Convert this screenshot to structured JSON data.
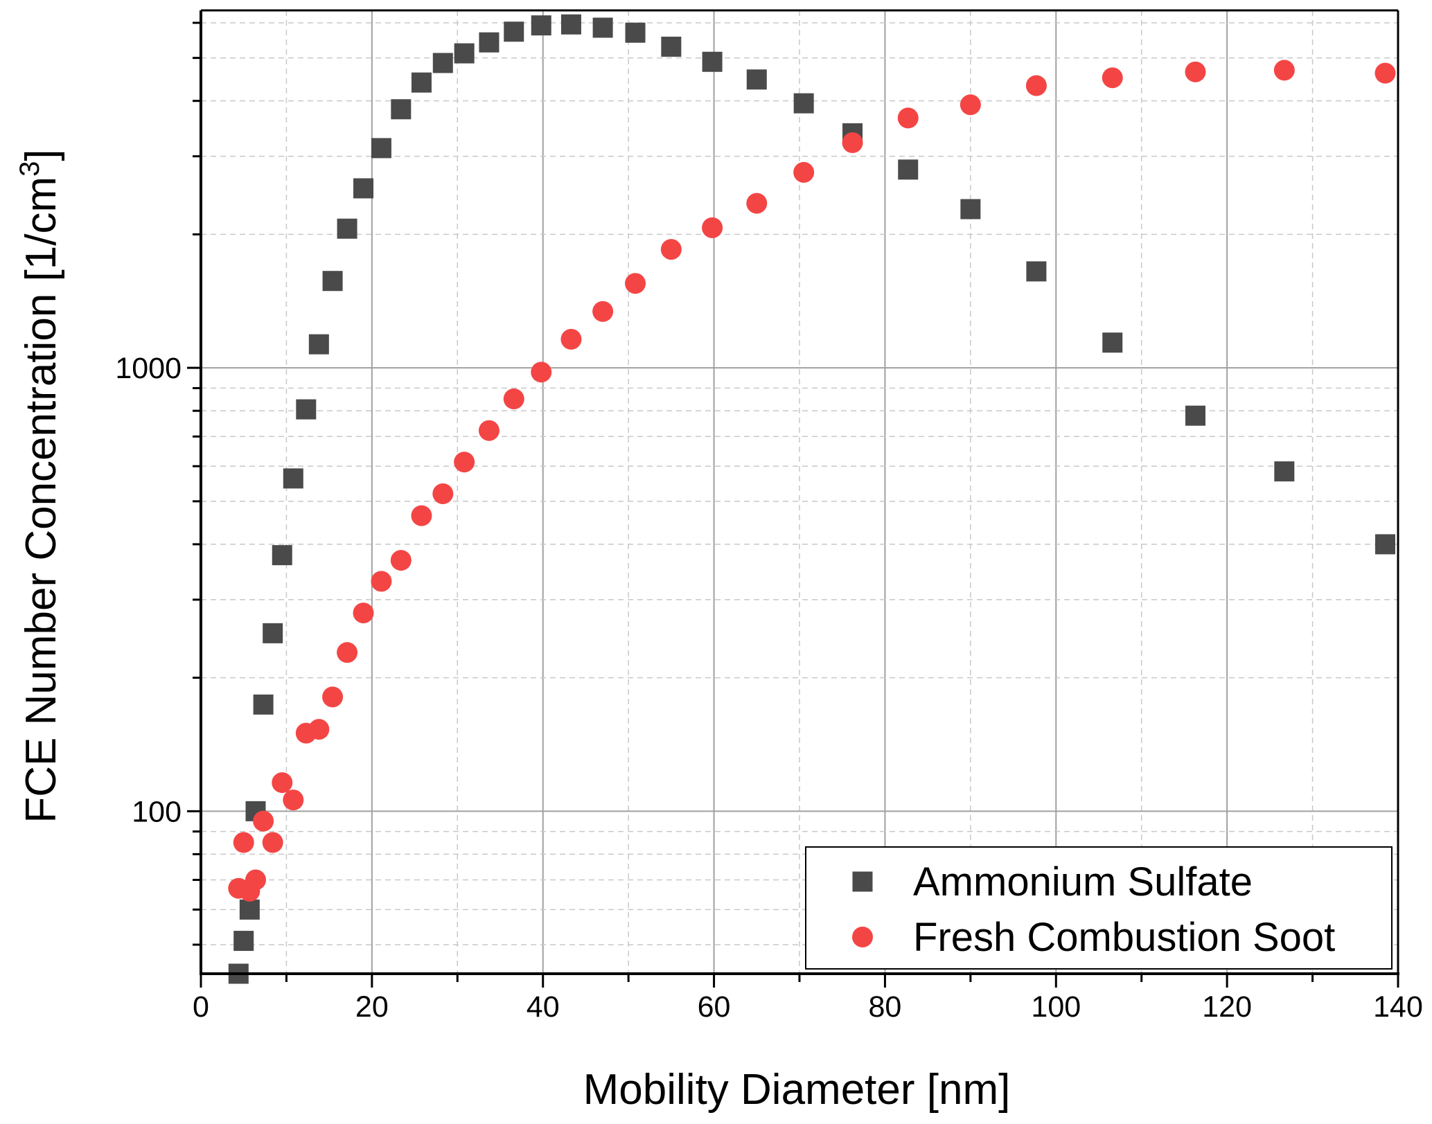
{
  "chart_data": {
    "type": "scatter",
    "xlabel": "Mobility Diameter [nm]",
    "ylabel": "FCE Number Concentration [1/cm³]",
    "ylabel_main": "FCE Number Concentration [1/cm",
    "ylabel_sup": "3",
    "ylabel_close": "]",
    "x_scale": "linear",
    "y_scale": "log",
    "xlim": [
      0,
      140
    ],
    "ylim": [
      43,
      6400
    ],
    "x_ticks": [
      0,
      20,
      40,
      60,
      80,
      100,
      120,
      140
    ],
    "x_tick_labels": [
      "0",
      "20",
      "40",
      "60",
      "80",
      "100",
      "120",
      "140"
    ],
    "y_tick_labels": [
      {
        "value": 100,
        "label": "100"
      },
      {
        "value": 1000,
        "label": "1000"
      }
    ],
    "grid": true,
    "legend_position": "bottom-right",
    "series": [
      {
        "name": "Ammonium Sulfate",
        "marker": "square",
        "color": "#4a4a4a",
        "x": [
          4.4,
          5.0,
          5.7,
          6.4,
          7.3,
          8.4,
          9.5,
          10.8,
          12.3,
          13.8,
          15.4,
          17.1,
          19.0,
          21.1,
          23.4,
          25.8,
          28.3,
          30.8,
          33.7,
          36.6,
          39.8,
          43.3,
          47.0,
          50.8,
          55.0,
          59.8,
          65.0,
          70.5,
          76.2,
          82.7,
          90.0,
          97.7,
          106.6,
          116.3,
          126.7,
          138.5
        ],
        "y": [
          43,
          51,
          60,
          100,
          174,
          252,
          378,
          563,
          806,
          1130,
          1570,
          2060,
          2540,
          3130,
          3830,
          4400,
          4870,
          5120,
          5420,
          5730,
          5920,
          5950,
          5850,
          5700,
          5300,
          4900,
          4470,
          3950,
          3380,
          2800,
          2280,
          1650,
          1140,
          780,
          584,
          400
        ]
      },
      {
        "name": "Fresh Combustion Soot",
        "marker": "circle",
        "color": "#f44545",
        "x": [
          4.4,
          5.0,
          5.7,
          6.4,
          7.3,
          8.4,
          9.5,
          10.8,
          12.3,
          13.8,
          15.4,
          17.1,
          19.0,
          21.1,
          23.4,
          25.8,
          28.3,
          30.8,
          33.7,
          36.6,
          39.8,
          43.3,
          47.0,
          50.8,
          55.0,
          59.8,
          65.0,
          70.5,
          76.2,
          82.7,
          90.0,
          97.7,
          106.6,
          116.3,
          126.7,
          138.5
        ],
        "y": [
          67,
          85,
          66,
          70,
          95,
          85,
          116,
          106,
          150,
          153,
          181,
          228,
          280,
          330,
          368,
          464,
          520,
          613,
          722,
          851,
          978,
          1160,
          1340,
          1550,
          1850,
          2070,
          2350,
          2760,
          3220,
          3660,
          3920,
          4330,
          4510,
          4650,
          4690,
          4620
        ]
      }
    ]
  }
}
